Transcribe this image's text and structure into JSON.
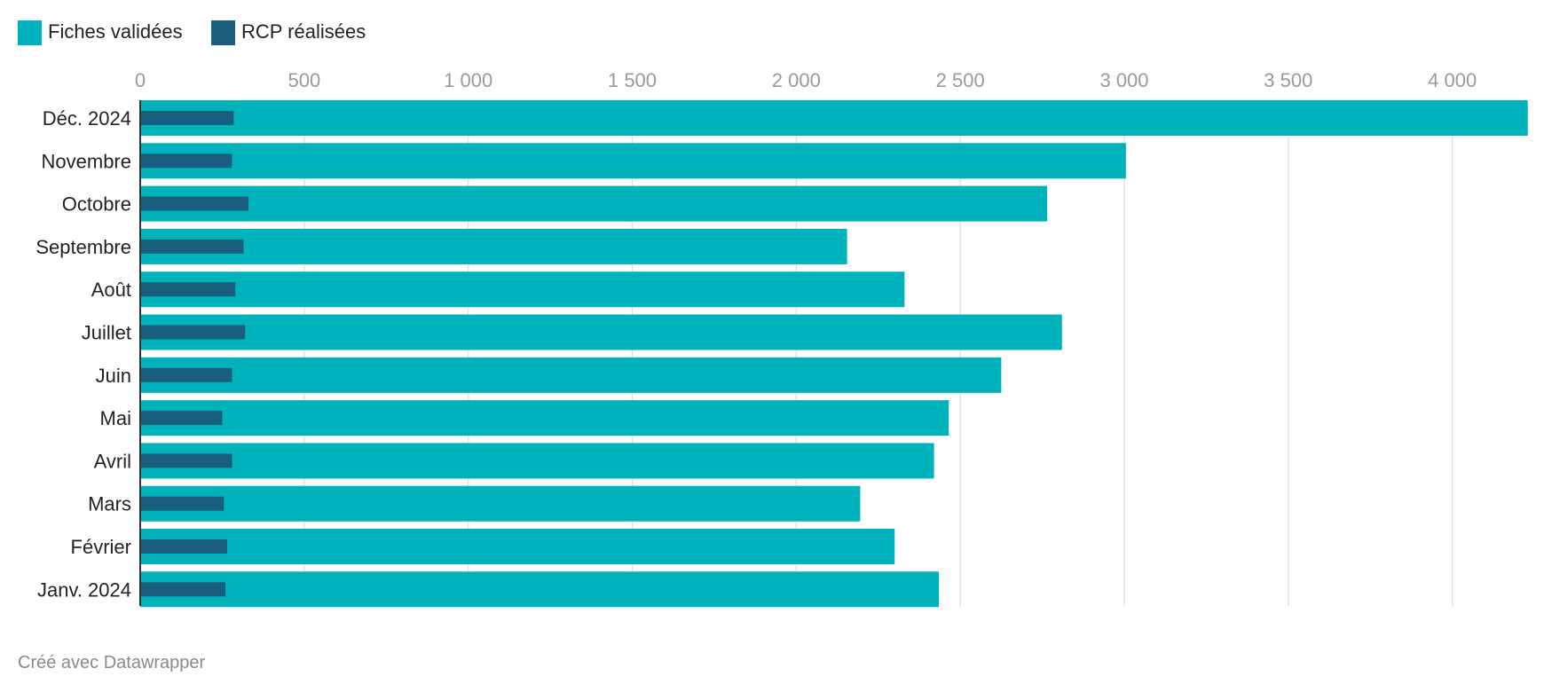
{
  "footer": {
    "credit": "Créé avec Datawrapper"
  },
  "colors": {
    "fiches": "#00b2bb",
    "rcp": "#1a5e7d",
    "grid": "#e3e3e3",
    "axis": "#333333"
  },
  "chart_data": {
    "type": "bar",
    "orientation": "horizontal",
    "legend_position": "top-left",
    "grid": true,
    "xlim": [
      0,
      4220
    ],
    "x_ticks": [
      {
        "value": 0,
        "label": "0"
      },
      {
        "value": 500,
        "label": "500"
      },
      {
        "value": 1000,
        "label": "1 000"
      },
      {
        "value": 1500,
        "label": "1 500"
      },
      {
        "value": 2000,
        "label": "2 000"
      },
      {
        "value": 2500,
        "label": "2 500"
      },
      {
        "value": 3000,
        "label": "3 000"
      },
      {
        "value": 3500,
        "label": "3 500"
      },
      {
        "value": 4000,
        "label": "4 000"
      }
    ],
    "categories": [
      "Déc. 2024",
      "Novembre",
      "Octobre",
      "Septembre",
      "Août",
      "Juillet",
      "Juin",
      "Mai",
      "Avril",
      "Mars",
      "Février",
      "Janv. 2024"
    ],
    "series": [
      {
        "name": "Fiches validées",
        "values": [
          4230,
          3005,
          2765,
          2155,
          2330,
          2810,
          2625,
          2465,
          2420,
          2195,
          2300,
          2435
        ]
      },
      {
        "name": "RCP réalisées",
        "values": [
          285,
          280,
          330,
          315,
          290,
          320,
          280,
          250,
          280,
          255,
          265,
          260
        ]
      }
    ]
  }
}
